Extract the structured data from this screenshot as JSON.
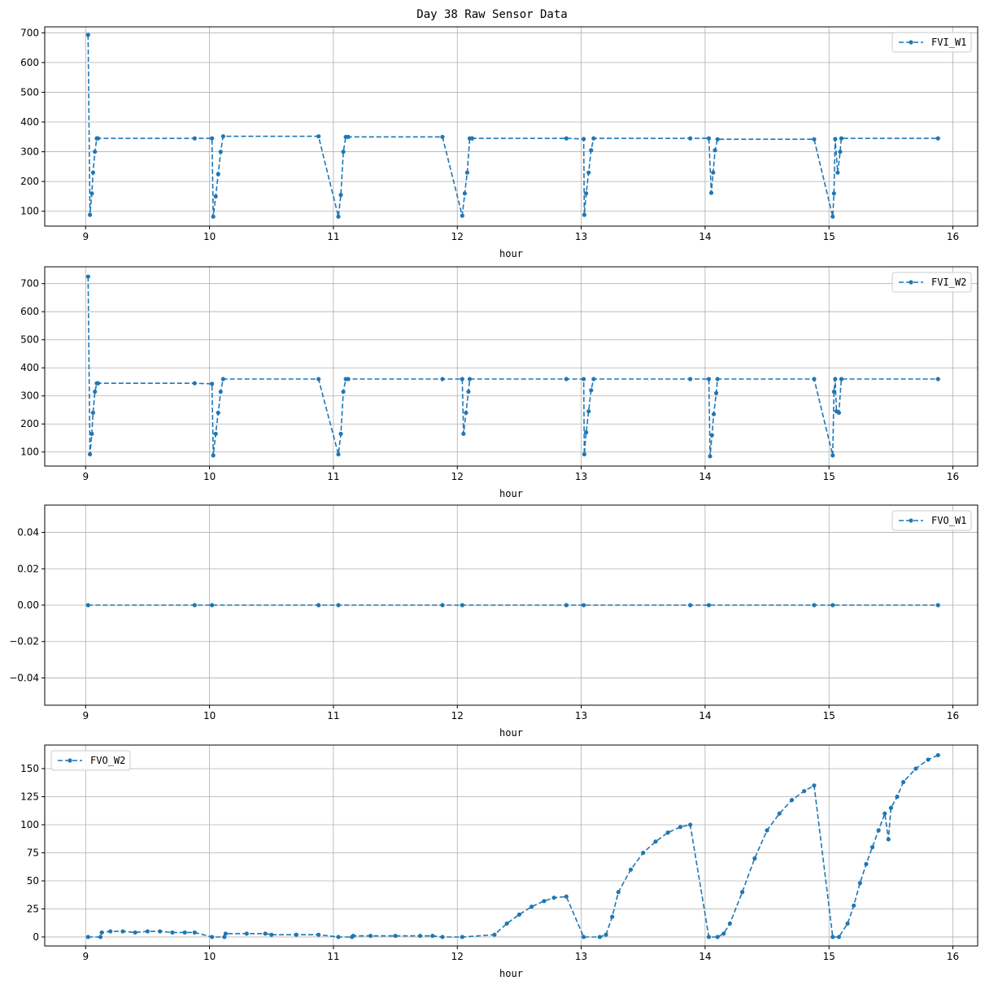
{
  "figure": {
    "title": "Day 38 Raw Sensor Data"
  },
  "colors": {
    "series": "#1f77b4",
    "grid": "#b0b0b0",
    "axes": "#000000",
    "background": "#ffffff"
  },
  "chart_data": [
    {
      "type": "line",
      "xlabel": "hour",
      "ylabel": "",
      "xlim": [
        8.67,
        16.2
      ],
      "ylim": [
        50,
        720
      ],
      "xticks": [
        9,
        10,
        11,
        12,
        13,
        14,
        15,
        16
      ],
      "yticks": [
        100,
        200,
        300,
        400,
        500,
        600,
        700
      ],
      "yticklabels": [
        "100",
        "200",
        "300",
        "400",
        "500",
        "600",
        "700"
      ],
      "grid": true,
      "legend_position": "top-right",
      "line_style": "dashed",
      "marker": "circle",
      "series": [
        {
          "name": "FVI_W1",
          "x": [
            9.02,
            9.035,
            9.05,
            9.06,
            9.075,
            9.09,
            9.1,
            9.88,
            10.02,
            10.03,
            10.05,
            10.07,
            10.09,
            10.11,
            10.88,
            11.04,
            11.06,
            11.08,
            11.1,
            11.12,
            11.88,
            12.04,
            12.06,
            12.08,
            12.1,
            12.12,
            12.88,
            13.02,
            13.025,
            13.04,
            13.06,
            13.08,
            13.1,
            13.88,
            14.03,
            14.05,
            14.065,
            14.08,
            14.1,
            14.88,
            15.03,
            15.04,
            15.05,
            15.07,
            15.09,
            15.1,
            15.88
          ],
          "y": [
            693,
            88,
            160,
            230,
            300,
            345,
            345,
            345,
            345,
            82,
            150,
            225,
            300,
            352,
            352,
            82,
            155,
            300,
            350,
            350,
            350,
            85,
            160,
            230,
            345,
            345,
            345,
            343,
            88,
            160,
            230,
            305,
            345,
            345,
            345,
            162,
            230,
            305,
            342,
            342,
            82,
            160,
            343,
            230,
            300,
            345,
            345
          ]
        }
      ]
    },
    {
      "type": "line",
      "xlabel": "hour",
      "ylabel": "",
      "xlim": [
        8.67,
        16.2
      ],
      "ylim": [
        50,
        760
      ],
      "xticks": [
        9,
        10,
        11,
        12,
        13,
        14,
        15,
        16
      ],
      "yticks": [
        100,
        200,
        300,
        400,
        500,
        600,
        700
      ],
      "yticklabels": [
        "100",
        "200",
        "300",
        "400",
        "500",
        "600",
        "700"
      ],
      "grid": true,
      "legend_position": "top-right",
      "line_style": "dashed",
      "marker": "circle",
      "series": [
        {
          "name": "FVI_W2",
          "x": [
            9.02,
            9.035,
            9.05,
            9.06,
            9.075,
            9.09,
            9.1,
            9.88,
            10.02,
            10.03,
            10.05,
            10.07,
            10.09,
            10.11,
            10.88,
            11.04,
            11.06,
            11.08,
            11.1,
            11.12,
            11.88,
            12.04,
            12.05,
            12.07,
            12.09,
            12.1,
            12.88,
            13.02,
            13.025,
            13.04,
            13.06,
            13.08,
            13.1,
            13.88,
            14.03,
            14.04,
            14.055,
            14.07,
            14.09,
            14.1,
            14.88,
            15.03,
            15.04,
            15.05,
            15.06,
            15.08,
            15.1,
            15.88
          ],
          "y": [
            725,
            92,
            165,
            240,
            315,
            345,
            345,
            345,
            343,
            88,
            165,
            240,
            315,
            360,
            360,
            92,
            165,
            315,
            360,
            360,
            360,
            360,
            165,
            240,
            315,
            360,
            360,
            360,
            92,
            170,
            245,
            320,
            360,
            360,
            360,
            85,
            160,
            235,
            310,
            360,
            360,
            88,
            315,
            360,
            245,
            240,
            360,
            360
          ]
        }
      ]
    },
    {
      "type": "line",
      "xlabel": "hour",
      "ylabel": "",
      "xlim": [
        8.67,
        16.2
      ],
      "ylim": [
        -0.055,
        0.055
      ],
      "xticks": [
        9,
        10,
        11,
        12,
        13,
        14,
        15,
        16
      ],
      "yticks": [
        -0.04,
        -0.02,
        0,
        0.02,
        0.04
      ],
      "yticklabels": [
        "−0.04",
        "−0.02",
        "0.00",
        "0.02",
        "0.04"
      ],
      "grid": true,
      "legend_position": "top-right",
      "line_style": "dashed",
      "marker": "circle",
      "series": [
        {
          "name": "FVO_W1",
          "x": [
            9.02,
            9.88,
            10.02,
            10.88,
            11.04,
            11.88,
            12.04,
            12.88,
            13.02,
            13.88,
            14.03,
            14.88,
            15.03,
            15.88
          ],
          "y": [
            0,
            0,
            0,
            0,
            0,
            0,
            0,
            0,
            0,
            0,
            0,
            0,
            0,
            0
          ]
        }
      ]
    },
    {
      "type": "line",
      "xlabel": "hour",
      "ylabel": "",
      "xlim": [
        8.67,
        16.2
      ],
      "ylim": [
        -8,
        171
      ],
      "xticks": [
        9,
        10,
        11,
        12,
        13,
        14,
        15,
        16
      ],
      "yticks": [
        0,
        25,
        50,
        75,
        100,
        125,
        150
      ],
      "yticklabels": [
        "0",
        "25",
        "50",
        "75",
        "100",
        "125",
        "150"
      ],
      "grid": true,
      "legend_position": "top-left",
      "line_style": "dashed",
      "marker": "circle",
      "series": [
        {
          "name": "FVO_W2",
          "x": [
            9.02,
            9.12,
            9.13,
            9.2,
            9.3,
            9.4,
            9.5,
            9.6,
            9.7,
            9.8,
            9.88,
            10.02,
            10.12,
            10.13,
            10.3,
            10.45,
            10.5,
            10.7,
            10.88,
            11.04,
            11.15,
            11.16,
            11.3,
            11.5,
            11.7,
            11.8,
            11.88,
            12.04,
            12.3,
            12.4,
            12.5,
            12.6,
            12.7,
            12.78,
            12.88,
            13.02,
            13.15,
            13.2,
            13.25,
            13.3,
            13.4,
            13.5,
            13.6,
            13.7,
            13.8,
            13.88,
            14.03,
            14.1,
            14.15,
            14.2,
            14.3,
            14.4,
            14.5,
            14.6,
            14.7,
            14.8,
            14.88,
            15.03,
            15.08,
            15.15,
            15.2,
            15.25,
            15.3,
            15.35,
            15.4,
            15.45,
            15.48,
            15.5,
            15.55,
            15.6,
            15.7,
            15.8,
            15.88
          ],
          "y": [
            0,
            0,
            4,
            5,
            5,
            4,
            5,
            5,
            4,
            4,
            4,
            0,
            0,
            3,
            3,
            3,
            2,
            2,
            2,
            0,
            0,
            1,
            1,
            1,
            1,
            1,
            0,
            0,
            2,
            12,
            20,
            27,
            32,
            35,
            36,
            0,
            0,
            2,
            18,
            40,
            60,
            75,
            85,
            93,
            98,
            100,
            0,
            0,
            3,
            12,
            40,
            70,
            95,
            110,
            122,
            130,
            135,
            0,
            0,
            12,
            28,
            48,
            65,
            80,
            95,
            110,
            87,
            115,
            125,
            138,
            150,
            158,
            162
          ]
        }
      ]
    }
  ]
}
